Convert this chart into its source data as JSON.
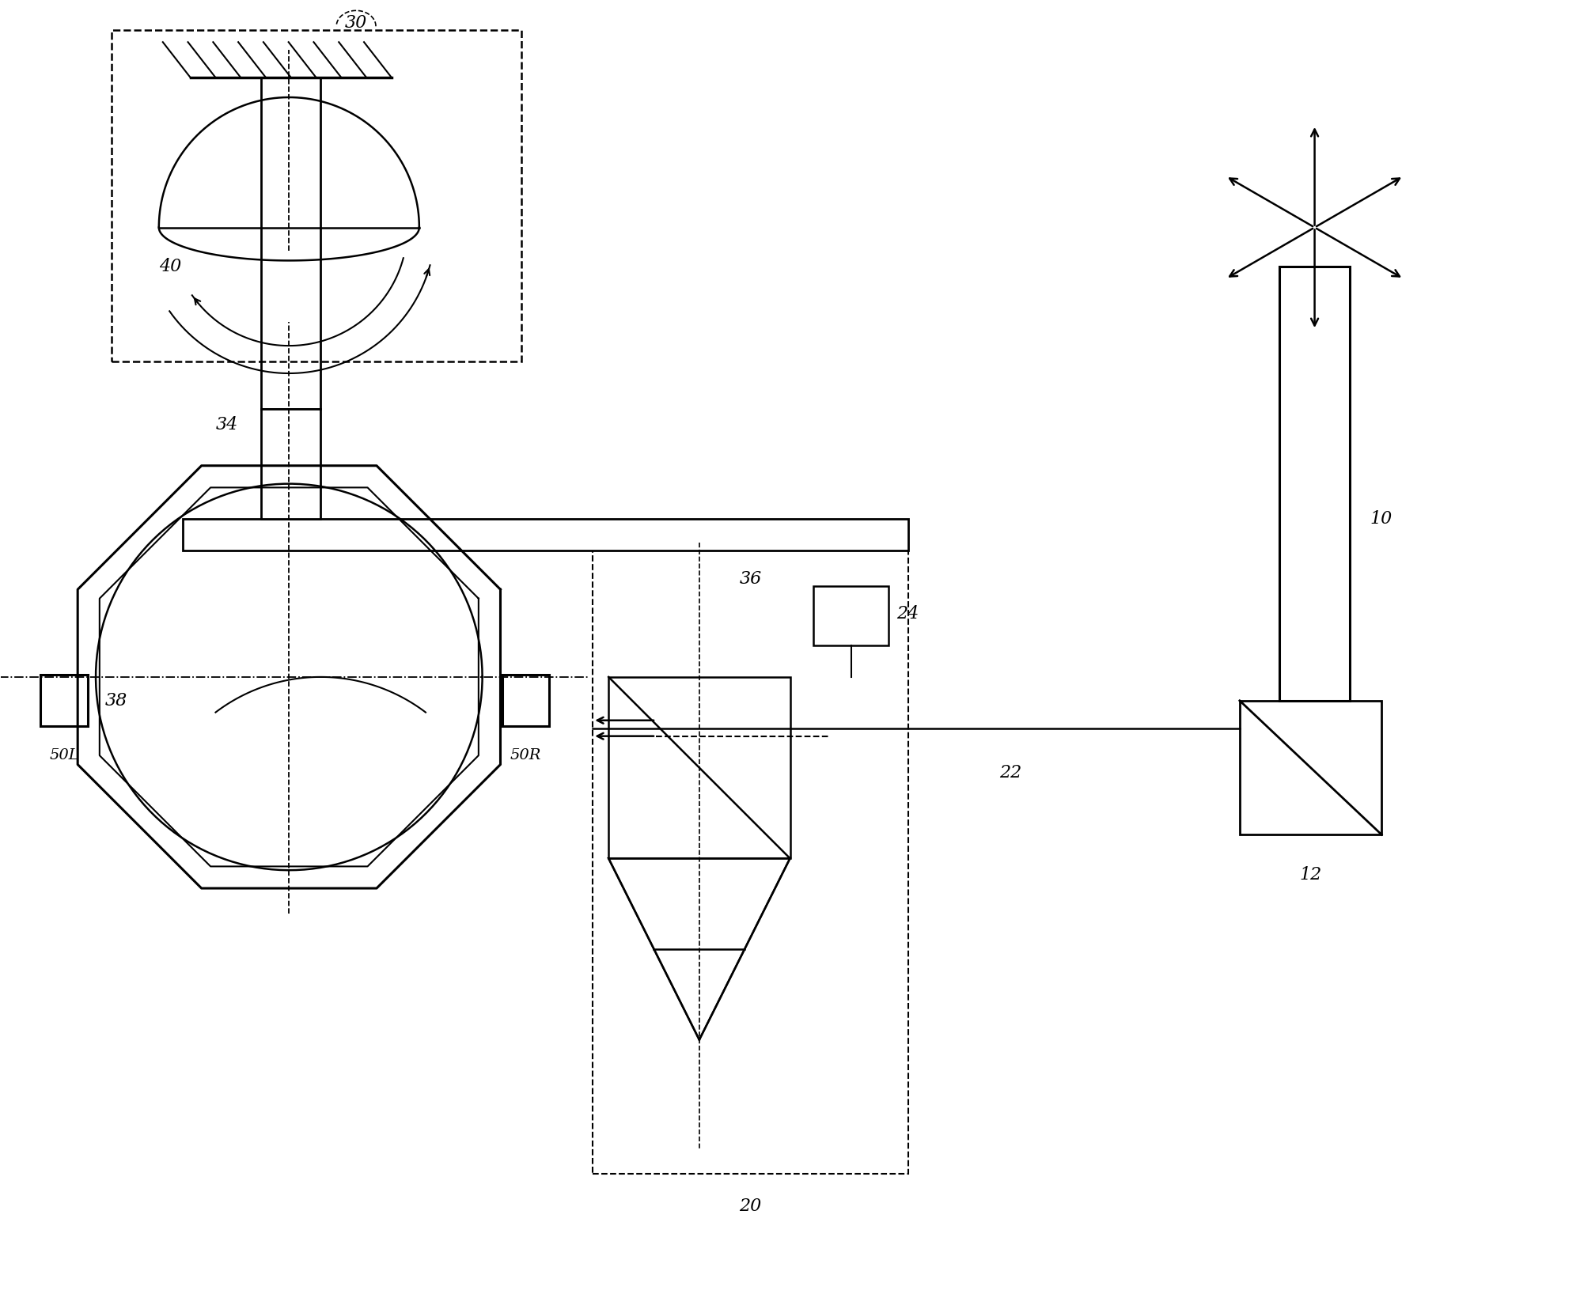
{
  "bg_color": "#ffffff",
  "line_color": "#000000",
  "fig_width": 19.97,
  "fig_height": 16.36
}
